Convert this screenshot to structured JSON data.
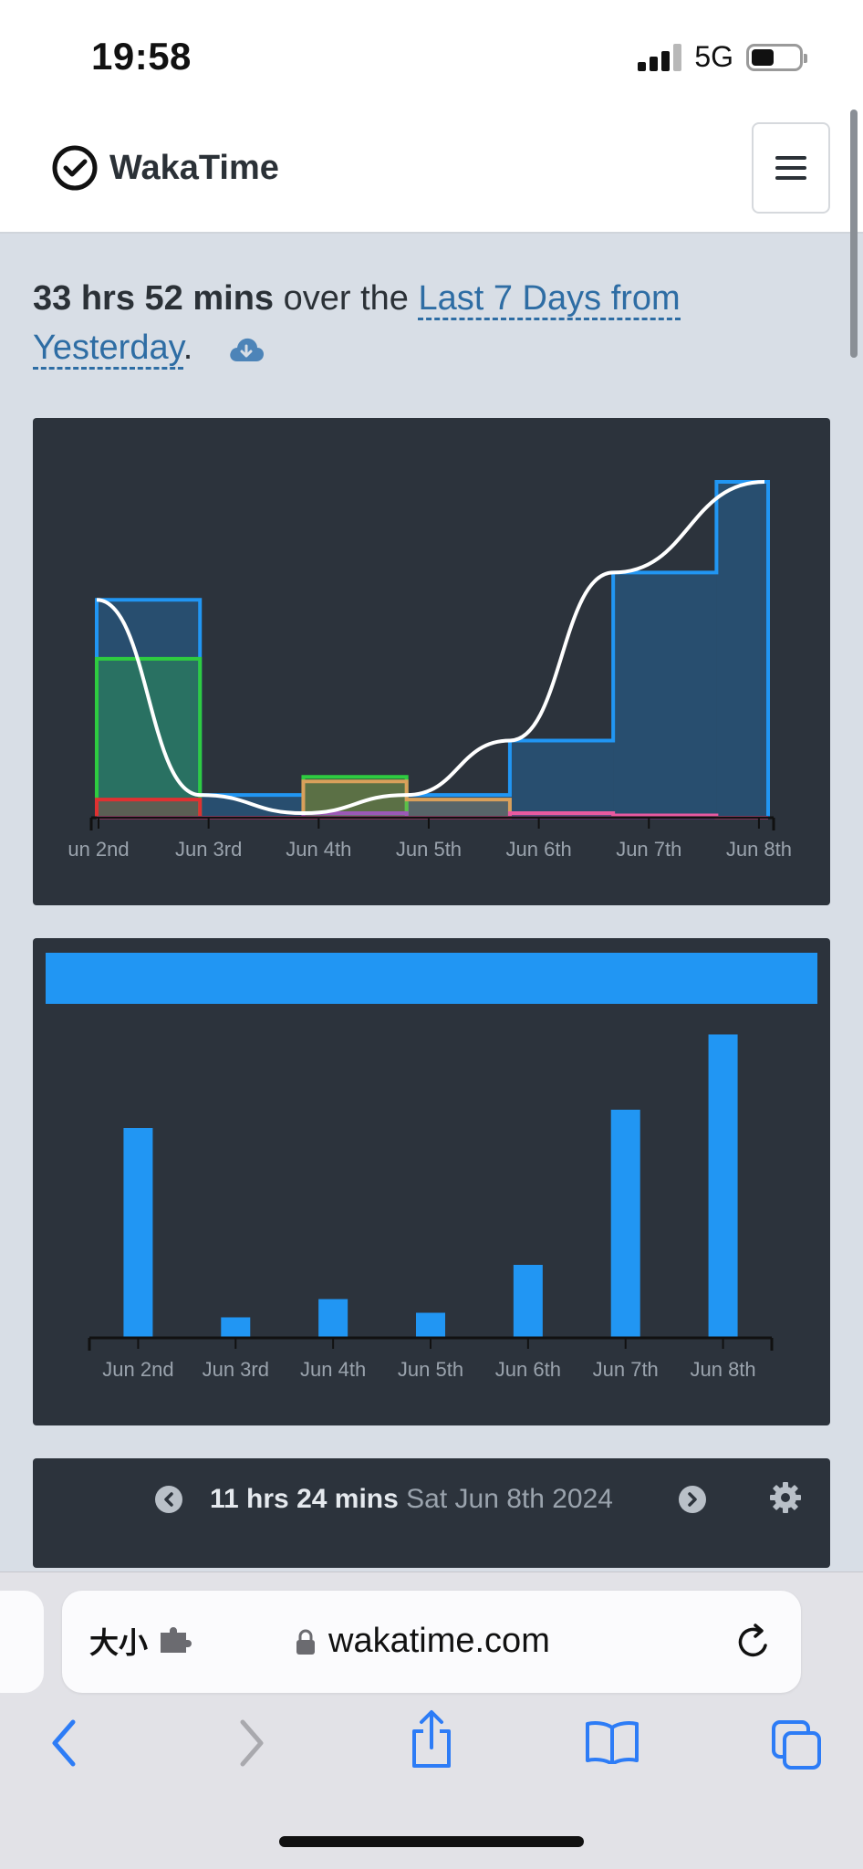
{
  "status_bar": {
    "time": "19:58",
    "network": "5G"
  },
  "navbar": {
    "brand": "WakaTime"
  },
  "summary": {
    "total": "33 hrs 52 mins",
    "connector": "over the",
    "range_label": "Last 7 Days from Yesterday",
    "period": "."
  },
  "chart_data": [
    {
      "type": "area",
      "categories": [
        "Jun 2nd",
        "Jun 3rd",
        "Jun 4th",
        "Jun 5th",
        "Jun 6th",
        "Jun 7th",
        "Jun 8th"
      ],
      "tick_labels": [
        "un 2nd",
        "Jun 3rd",
        "Jun 4th",
        "Jun 5th",
        "Jun 6th",
        "Jun 7th",
        "Jun 8th"
      ],
      "series": [
        {
          "color": "#2196f3",
          "values": [
            4.8,
            0.5,
            0.1,
            0.5,
            1.7,
            5.4,
            7.4
          ]
        },
        {
          "color": "#2ecc40",
          "values": [
            3.5,
            0.0,
            0.9,
            0.0,
            0.0,
            0.0,
            0.0
          ]
        },
        {
          "color": "#d9a05b",
          "values": [
            0.0,
            0.0,
            0.8,
            0.4,
            0.0,
            0.0,
            0.0
          ]
        },
        {
          "color": "#e03131",
          "values": [
            0.4,
            0.0,
            0.0,
            0.0,
            0.0,
            0.0,
            0.0
          ]
        },
        {
          "color": "#9b59b6",
          "values": [
            0.0,
            0.0,
            0.1,
            0.0,
            0.0,
            0.0,
            0.0
          ]
        },
        {
          "color": "#e85aa0",
          "values": [
            0.0,
            0.0,
            0.0,
            0.0,
            0.1,
            0.05,
            0.0
          ]
        }
      ],
      "trend_color": "#ffffff",
      "ylim": [
        0,
        7.6
      ],
      "grid": false
    },
    {
      "type": "bar",
      "categories": [
        "Jun 2nd",
        "Jun 3rd",
        "Jun 4th",
        "Jun 5th",
        "Jun 6th",
        "Jun 7th",
        "Jun 8th"
      ],
      "values": [
        4.6,
        0.45,
        0.85,
        0.55,
        1.6,
        5.0,
        6.65
      ],
      "color": "#2196f3",
      "ylim": [
        0,
        7.0
      ],
      "grid": false
    }
  ],
  "day_panel": {
    "duration": "11 hrs 24 mins",
    "date": "Sat Jun 8th 2024",
    "prev_icon": "chevron-left-circle-icon",
    "next_icon": "chevron-right-circle-icon",
    "settings_icon": "gear-icon"
  },
  "safari": {
    "text_size_label": "大小",
    "url": "wakatime.com"
  },
  "colors": {
    "accent": "#2196f3",
    "panel_bg": "#2c333c",
    "page_bg": "#d8dee6",
    "link": "#2e6da4"
  }
}
